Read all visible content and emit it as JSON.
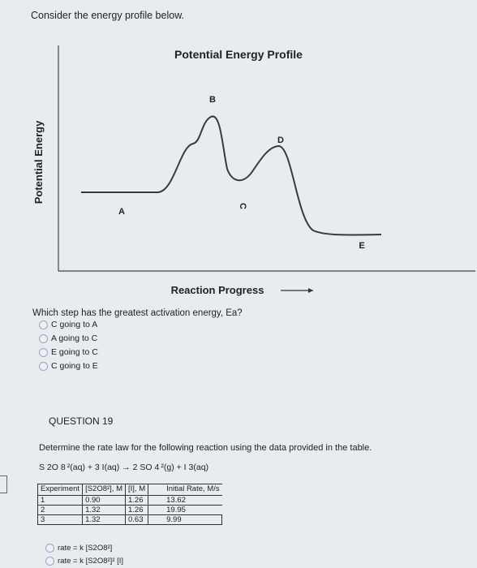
{
  "intro": "Consider the energy profile below.",
  "chart_data": {
    "type": "line",
    "title": "Potential Energy Profile",
    "xlabel": "Reaction Progress",
    "ylabel": "Potential Energy",
    "points": [
      {
        "label": "A"
      },
      {
        "label": "B"
      },
      {
        "label": "C"
      },
      {
        "label": "D"
      },
      {
        "label": "E"
      }
    ],
    "grid": false
  },
  "question": "Which step has the greatest activation energy, Ea?",
  "options": [
    "C going to A",
    "A going to C",
    "E going to C",
    "C going to E"
  ],
  "q19": {
    "title": "QUESTION 19",
    "text": "Determine the rate law for the following reaction using the data provided in the table.",
    "equation": "S 2O 8 ²(aq) + 3 I(aq) → 2 SO 4 ²(g) + I 3(aq)",
    "table": {
      "headers": [
        "Experiment",
        "[S2O8²], M",
        "[I], M",
        "Initial Rate, M/s"
      ],
      "rows": [
        [
          "1",
          "0.90",
          "1.26",
          "13.62"
        ],
        [
          "2",
          "1.32",
          "1.26",
          "19.95"
        ],
        [
          "3",
          "1.32",
          "0.63",
          "9.99"
        ]
      ]
    },
    "answers": [
      "rate = k [S2O8²]",
      "rate = k [S2O8²]² [I]"
    ]
  }
}
